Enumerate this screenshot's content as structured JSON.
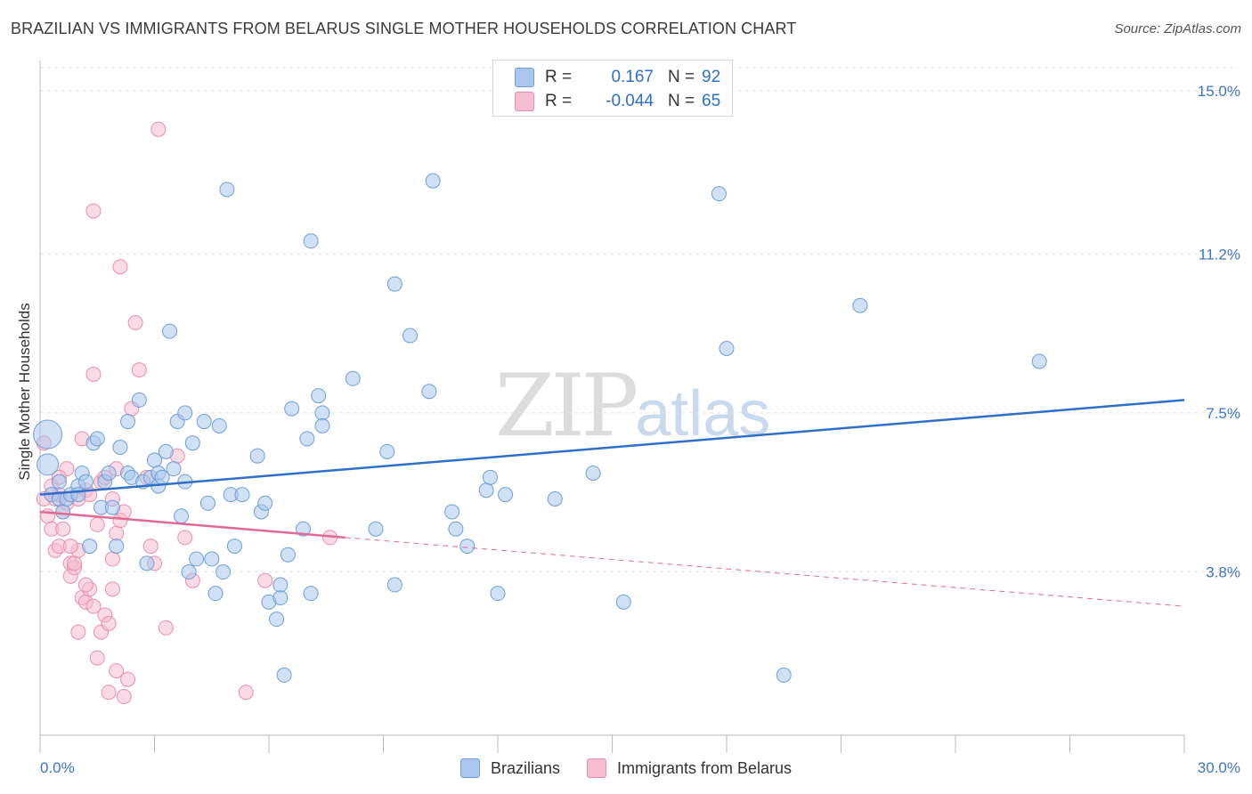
{
  "title": "BRAZILIAN VS IMMIGRANTS FROM BELARUS SINGLE MOTHER HOUSEHOLDS CORRELATION CHART",
  "source": "Source: ZipAtlas.com",
  "watermark": {
    "zip": "ZIP",
    "atlas": "atlas"
  },
  "legend": {
    "r_label": "R =",
    "n_label": "N =",
    "rows": [
      {
        "r": "0.167",
        "n": "92"
      },
      {
        "r": "-0.044",
        "n": "65"
      }
    ]
  },
  "colors": {
    "blue_fill": "#a9c7ec",
    "blue_stroke": "#6f9fd8",
    "blue_line": "#2f6fcb",
    "pink_fill": "#f6bccf",
    "pink_stroke": "#e98fae",
    "pink_line": "#e06a95",
    "axis_text_blue": "#3c74c8",
    "grid": "#e3e3e3"
  },
  "chart_data": {
    "type": "scatter",
    "title": "BRAZILIAN VS IMMIGRANTS FROM BELARUS SINGLE MOTHER HOUSEHOLDS CORRELATION CHART",
    "xlabel": "",
    "ylabel": "Single Mother Households",
    "xlim": [
      0,
      30
    ],
    "ylim": [
      0,
      15.7
    ],
    "x_ticks": [
      0.0,
      3.0,
      6.0,
      9.0,
      12.0,
      15.0,
      18.0,
      21.0,
      24.0,
      27.0,
      30.0
    ],
    "x_tick_labels": [
      "0.0%",
      "30.0%"
    ],
    "y_ticks": [
      3.8,
      7.5,
      11.2,
      15.0
    ],
    "y_tick_labels": [
      "3.8%",
      "7.5%",
      "11.2%",
      "15.0%"
    ],
    "grid": true,
    "legend_position": "top-center",
    "series": [
      {
        "name": "Brazilians",
        "r": 0.167,
        "n": 92,
        "trend": {
          "x": [
            0,
            30
          ],
          "y": [
            5.6,
            7.8
          ],
          "style": "solid"
        },
        "points": [
          [
            0.2,
            7.0
          ],
          [
            0.2,
            6.3
          ],
          [
            0.3,
            5.6
          ],
          [
            0.5,
            5.5
          ],
          [
            0.5,
            5.9
          ],
          [
            0.6,
            5.2
          ],
          [
            0.7,
            5.5
          ],
          [
            0.8,
            5.6
          ],
          [
            1.0,
            5.8
          ],
          [
            1.0,
            5.6
          ],
          [
            1.1,
            6.1
          ],
          [
            1.2,
            5.9
          ],
          [
            1.3,
            4.4
          ],
          [
            1.4,
            6.8
          ],
          [
            1.5,
            6.9
          ],
          [
            1.6,
            5.3
          ],
          [
            1.7,
            5.9
          ],
          [
            1.8,
            6.1
          ],
          [
            1.9,
            5.3
          ],
          [
            2.0,
            4.4
          ],
          [
            2.1,
            6.7
          ],
          [
            2.3,
            6.1
          ],
          [
            2.3,
            7.3
          ],
          [
            2.4,
            6.0
          ],
          [
            2.6,
            7.8
          ],
          [
            2.7,
            5.9
          ],
          [
            2.8,
            4.0
          ],
          [
            2.9,
            6.0
          ],
          [
            3.0,
            6.4
          ],
          [
            3.1,
            6.1
          ],
          [
            3.1,
            5.8
          ],
          [
            3.2,
            6.0
          ],
          [
            3.3,
            6.6
          ],
          [
            3.4,
            9.4
          ],
          [
            3.5,
            6.2
          ],
          [
            3.6,
            7.3
          ],
          [
            3.7,
            5.1
          ],
          [
            3.8,
            7.5
          ],
          [
            3.8,
            5.9
          ],
          [
            3.9,
            3.8
          ],
          [
            4.0,
            6.8
          ],
          [
            4.1,
            4.1
          ],
          [
            4.3,
            7.3
          ],
          [
            4.4,
            5.4
          ],
          [
            4.5,
            4.1
          ],
          [
            4.6,
            3.3
          ],
          [
            4.7,
            7.2
          ],
          [
            4.8,
            3.8
          ],
          [
            4.9,
            12.7
          ],
          [
            5.0,
            5.6
          ],
          [
            5.1,
            4.4
          ],
          [
            5.3,
            5.6
          ],
          [
            5.7,
            6.5
          ],
          [
            5.8,
            5.2
          ],
          [
            5.9,
            5.4
          ],
          [
            6.0,
            3.1
          ],
          [
            6.2,
            2.7
          ],
          [
            6.3,
            3.2
          ],
          [
            6.3,
            3.5
          ],
          [
            6.4,
            1.4
          ],
          [
            6.5,
            4.2
          ],
          [
            6.6,
            7.6
          ],
          [
            6.9,
            4.8
          ],
          [
            7.0,
            6.9
          ],
          [
            7.1,
            3.3
          ],
          [
            7.1,
            11.5
          ],
          [
            7.3,
            7.9
          ],
          [
            7.4,
            7.5
          ],
          [
            7.4,
            7.2
          ],
          [
            8.2,
            8.3
          ],
          [
            8.8,
            4.8
          ],
          [
            9.1,
            6.6
          ],
          [
            9.3,
            10.5
          ],
          [
            9.3,
            3.5
          ],
          [
            9.7,
            9.3
          ],
          [
            10.2,
            8.0
          ],
          [
            10.3,
            12.9
          ],
          [
            10.8,
            5.2
          ],
          [
            10.9,
            4.8
          ],
          [
            11.2,
            4.4
          ],
          [
            11.7,
            5.7
          ],
          [
            11.8,
            6.0
          ],
          [
            12.0,
            3.3
          ],
          [
            12.2,
            5.6
          ],
          [
            13.5,
            5.5
          ],
          [
            14.5,
            6.1
          ],
          [
            15.3,
            3.1
          ],
          [
            17.8,
            12.6
          ],
          [
            18.0,
            9.0
          ],
          [
            19.5,
            1.4
          ],
          [
            21.5,
            10.0
          ],
          [
            26.2,
            8.7
          ]
        ]
      },
      {
        "name": "Immigrants from Belarus",
        "r": -0.044,
        "n": 65,
        "trend_solid": {
          "x": [
            0,
            8.0
          ],
          "y": [
            5.2,
            4.6
          ]
        },
        "trend_dashed": {
          "x": [
            8.0,
            30
          ],
          "y": [
            4.6,
            3.0
          ]
        },
        "points": [
          [
            0.1,
            6.8
          ],
          [
            0.1,
            5.5
          ],
          [
            0.2,
            5.1
          ],
          [
            0.3,
            4.8
          ],
          [
            0.4,
            5.5
          ],
          [
            0.4,
            4.3
          ],
          [
            0.5,
            4.4
          ],
          [
            0.5,
            5.6
          ],
          [
            0.6,
            4.8
          ],
          [
            0.6,
            5.2
          ],
          [
            0.7,
            6.2
          ],
          [
            0.7,
            5.4
          ],
          [
            0.8,
            4.0
          ],
          [
            0.8,
            3.7
          ],
          [
            0.9,
            3.9
          ],
          [
            0.9,
            4.0
          ],
          [
            1.0,
            4.3
          ],
          [
            1.0,
            5.5
          ],
          [
            1.1,
            3.2
          ],
          [
            1.1,
            6.9
          ],
          [
            1.2,
            3.1
          ],
          [
            1.2,
            5.7
          ],
          [
            1.3,
            3.4
          ],
          [
            1.3,
            5.6
          ],
          [
            1.4,
            8.4
          ],
          [
            1.4,
            3.0
          ],
          [
            1.4,
            12.2
          ],
          [
            1.5,
            4.9
          ],
          [
            1.6,
            2.4
          ],
          [
            1.6,
            5.9
          ],
          [
            1.7,
            2.8
          ],
          [
            1.7,
            6.0
          ],
          [
            1.8,
            2.6
          ],
          [
            1.8,
            1.0
          ],
          [
            1.9,
            4.1
          ],
          [
            1.9,
            5.5
          ],
          [
            2.0,
            6.2
          ],
          [
            2.0,
            4.7
          ],
          [
            2.1,
            10.9
          ],
          [
            2.1,
            5.0
          ],
          [
            2.2,
            5.2
          ],
          [
            2.2,
            0.9
          ],
          [
            2.3,
            1.3
          ],
          [
            2.4,
            7.6
          ],
          [
            2.5,
            9.6
          ],
          [
            2.6,
            8.5
          ],
          [
            2.8,
            6.0
          ],
          [
            2.9,
            4.4
          ],
          [
            3.0,
            4.0
          ],
          [
            3.1,
            14.1
          ],
          [
            3.3,
            2.5
          ],
          [
            3.6,
            6.5
          ],
          [
            3.8,
            4.6
          ],
          [
            4.0,
            3.6
          ],
          [
            5.4,
            1.0
          ],
          [
            5.9,
            3.6
          ],
          [
            7.6,
            4.6
          ],
          [
            0.3,
            5.8
          ],
          [
            0.5,
            6.0
          ],
          [
            1.0,
            2.4
          ],
          [
            1.2,
            3.5
          ],
          [
            1.5,
            1.8
          ],
          [
            2.0,
            1.5
          ],
          [
            0.8,
            4.4
          ],
          [
            1.9,
            3.4
          ]
        ]
      }
    ]
  },
  "bottom_legend": [
    {
      "label": "Brazilians"
    },
    {
      "label": "Immigrants from Belarus"
    }
  ]
}
